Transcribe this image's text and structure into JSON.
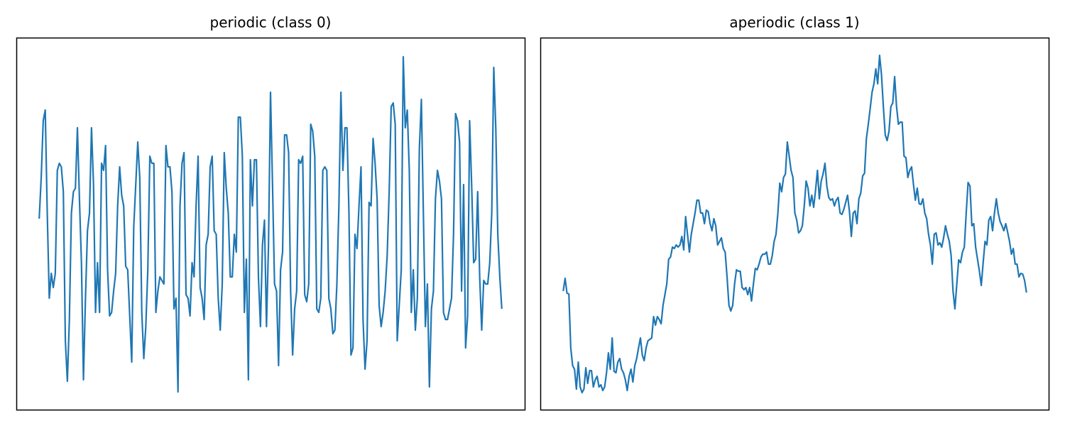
{
  "chart_data": [
    {
      "type": "line",
      "title": "periodic (class 0)",
      "color": "#1f77b4",
      "ylim": [
        0,
        525
      ],
      "values": [
        270,
        328,
        408,
        423,
        278,
        158,
        193,
        173,
        193,
        338,
        348,
        343,
        308,
        98,
        41,
        128,
        278,
        308,
        313,
        398,
        298,
        208,
        43,
        158,
        253,
        278,
        398,
        318,
        138,
        208,
        138,
        348,
        338,
        373,
        198,
        133,
        138,
        168,
        193,
        288,
        343,
        303,
        288,
        203,
        198,
        133,
        68,
        258,
        318,
        378,
        328,
        138,
        73,
        118,
        198,
        358,
        348,
        348,
        138,
        168,
        188,
        183,
        178,
        373,
        343,
        343,
        308,
        143,
        158,
        26,
        288,
        348,
        363,
        163,
        158,
        133,
        208,
        188,
        288,
        358,
        173,
        158,
        128,
        233,
        248,
        343,
        358,
        253,
        248,
        158,
        113,
        178,
        363,
        313,
        278,
        188,
        188,
        248,
        223,
        413,
        413,
        358,
        138,
        213,
        43,
        353,
        288,
        353,
        353,
        188,
        118,
        233,
        268,
        118,
        233,
        448,
        318,
        178,
        168,
        63,
        198,
        223,
        388,
        388,
        363,
        168,
        78,
        143,
        168,
        353,
        348,
        358,
        163,
        153,
        178,
        403,
        393,
        358,
        143,
        138,
        158,
        338,
        343,
        338,
        158,
        143,
        108,
        113,
        178,
        288,
        448,
        338,
        398,
        398,
        278,
        78,
        88,
        248,
        228,
        288,
        343,
        128,
        58,
        98,
        293,
        288,
        383,
        348,
        298,
        148,
        118,
        138,
        168,
        218,
        308,
        428,
        433,
        403,
        98,
        148,
        198,
        498,
        398,
        423,
        338,
        138,
        198,
        113,
        158,
        368,
        438,
        278,
        118,
        178,
        33,
        143,
        168,
        298,
        338,
        323,
        298,
        138,
        128,
        128,
        143,
        158,
        248,
        418,
        408,
        378,
        168,
        318,
        88,
        133,
        408,
        318,
        208,
        213,
        308,
        188,
        113,
        183,
        178,
        178,
        208,
        278,
        483,
        398,
        248,
        188,
        143
      ]
    },
    {
      "type": "line",
      "title": "aperiodic (class 1)",
      "color": "#1f77b4",
      "ylim": [
        0,
        525
      ],
      "values": [
        168,
        186,
        165,
        164,
        88,
        63,
        58,
        30,
        68,
        33,
        25,
        30,
        60,
        38,
        56,
        56,
        33,
        43,
        48,
        33,
        36,
        28,
        33,
        53,
        81,
        58,
        102,
        55,
        53,
        68,
        73,
        58,
        53,
        43,
        28,
        48,
        58,
        40,
        63,
        73,
        88,
        102,
        78,
        70,
        88,
        98,
        100,
        102,
        132,
        120,
        132,
        128,
        122,
        148,
        163,
        178,
        213,
        216,
        230,
        228,
        233,
        230,
        233,
        245,
        226,
        273,
        248,
        223,
        248,
        263,
        278,
        296,
        296,
        278,
        278,
        263,
        282,
        280,
        263,
        253,
        270,
        260,
        233,
        238,
        243,
        228,
        223,
        188,
        148,
        140,
        148,
        178,
        198,
        196,
        196,
        173,
        170,
        173,
        163,
        173,
        154,
        178,
        200,
        198,
        206,
        216,
        220,
        220,
        223,
        206,
        206,
        218,
        238,
        248,
        278,
        320,
        308,
        328,
        333,
        378,
        358,
        338,
        328,
        278,
        268,
        250,
        253,
        260,
        288,
        323,
        313,
        288,
        303,
        286,
        310,
        338,
        298,
        323,
        333,
        348,
        316,
        300,
        296,
        298,
        288,
        296,
        300,
        278,
        276,
        283,
        293,
        303,
        280,
        245,
        278,
        281,
        263,
        298,
        306,
        330,
        334,
        383,
        403,
        425,
        448,
        460,
        481,
        460,
        500,
        473,
        428,
        388,
        380,
        393,
        428,
        433,
        470,
        428,
        403,
        406,
        406,
        358,
        356,
        328,
        338,
        343,
        318,
        296,
        313,
        291,
        290,
        298,
        278,
        270,
        248,
        233,
        206,
        248,
        250,
        233,
        236,
        230,
        243,
        260,
        248,
        238,
        218,
        168,
        143,
        178,
        212,
        208,
        223,
        230,
        278,
        321,
        316,
        260,
        263,
        230,
        213,
        196,
        176,
        208,
        238,
        233,
        268,
        273,
        253,
        278,
        298,
        278,
        266,
        260,
        253,
        263,
        251,
        238,
        220,
        228,
        206,
        206,
        188,
        193,
        192,
        183,
        166
      ]
    }
  ]
}
